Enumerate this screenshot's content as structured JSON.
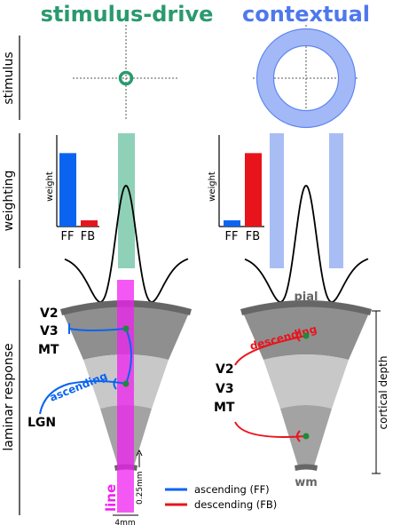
{
  "columns": {
    "stimulus_drive": "stimulus-drive",
    "contextual": "contextual"
  },
  "rows": {
    "stimulus": "stimulus",
    "weighting": "weighting",
    "laminar": "laminar response"
  },
  "bar_charts": {
    "ylabel": "weight",
    "categories": [
      "FF",
      "FB"
    ],
    "stimulus_drive_values": [
      0.95,
      0.08
    ],
    "contextual_values": [
      0.08,
      0.95
    ]
  },
  "laminar": {
    "areas": [
      "V2",
      "V3",
      "MT"
    ],
    "lgn": "LGN",
    "ascending": "ascending",
    "descending": "descending",
    "pial": "pial",
    "wm": "wm",
    "cortical_depth": "cortical depth",
    "line": "line",
    "scale_vertical": "0.25mm",
    "scale_horizontal": "4mm"
  },
  "legend": {
    "ascending": "ascending (FF)",
    "descending": "descending (FB)"
  },
  "colors": {
    "stim_green": "#2a9a6e",
    "context_blue": "#4f78ee",
    "ff_blue": "#0a64f0",
    "fb_red": "#e8141c",
    "line_magenta": "#f020f0"
  }
}
